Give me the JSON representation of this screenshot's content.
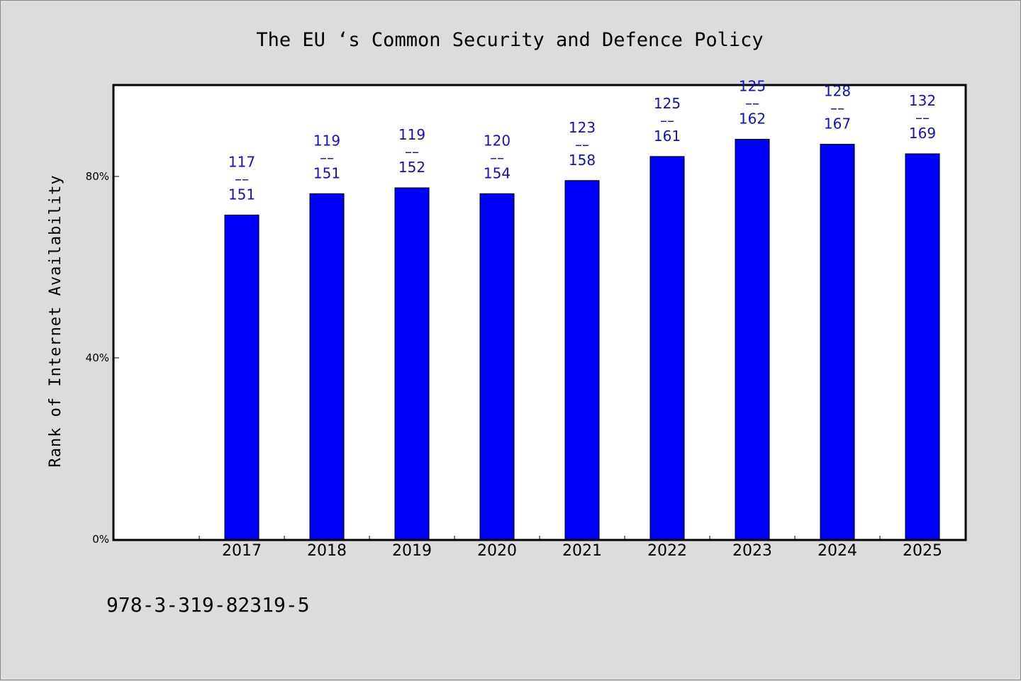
{
  "chart_data": {
    "type": "bar",
    "title": "The EU ‘s Common Security and Defence Policy",
    "ylabel": "Rank of Internet Availability",
    "xlabel": "",
    "categories": [
      "2017",
      "2018",
      "2019",
      "2020",
      "2021",
      "2022",
      "2023",
      "2024",
      "2025"
    ],
    "values": [
      71.5,
      76.2,
      77.5,
      76.2,
      79.1,
      84.4,
      88.2,
      87.1,
      85.0
    ],
    "data_labels": [
      {
        "top": "117",
        "sep": "––",
        "bottom": "151"
      },
      {
        "top": "119",
        "sep": "––",
        "bottom": "151"
      },
      {
        "top": "119",
        "sep": "––",
        "bottom": "152"
      },
      {
        "top": "120",
        "sep": "––",
        "bottom": "154"
      },
      {
        "top": "123",
        "sep": "––",
        "bottom": "158"
      },
      {
        "top": "125",
        "sep": "––",
        "bottom": "161"
      },
      {
        "top": "125",
        "sep": "––",
        "bottom": "162"
      },
      {
        "top": "128",
        "sep": "––",
        "bottom": "167"
      },
      {
        "top": "132",
        "sep": "––",
        "bottom": "169"
      }
    ],
    "yticks": [
      0,
      40,
      80
    ],
    "ytick_labels": [
      "0%",
      "40%",
      "80%"
    ],
    "ylim": [
      0,
      100
    ],
    "grid": false,
    "legend": "none",
    "colors": {
      "bar": "#0000ff",
      "data_label": "#1010c8",
      "background": "#dcdcdc",
      "plot_background": "#ffffff"
    }
  },
  "footer": {
    "isbn": "978-3-319-82319-5"
  }
}
